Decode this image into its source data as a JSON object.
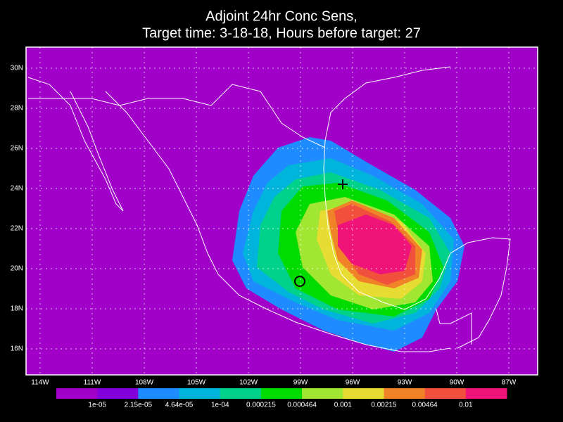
{
  "title_lines": [
    "Adjoint 24hr Conc Sens,",
    "Target time: 3-18-18, Hours before target: 27"
  ],
  "lat_labels": [
    "30N",
    "28N",
    "26N",
    "24N",
    "22N",
    "20N",
    "18N",
    "16N"
  ],
  "lon_labels": [
    "114W",
    "111W",
    "108W",
    "105W",
    "102W",
    "99W",
    "96W",
    "93W",
    "90W",
    "87W"
  ],
  "colorbar": {
    "colors": [
      "#a000c8",
      "#8200dc",
      "#1e8cff",
      "#00b4dc",
      "#00d28c",
      "#00dc00",
      "#a0e632",
      "#e6dc32",
      "#f08228",
      "#f0503c",
      "#f0147a"
    ],
    "labels": [
      "1e-05",
      "2.15e-05",
      "4.64e-05",
      "1e-04",
      "0.000215",
      "0.000464",
      "0.001",
      "0.00215",
      "0.00464",
      "0.01"
    ]
  }
}
